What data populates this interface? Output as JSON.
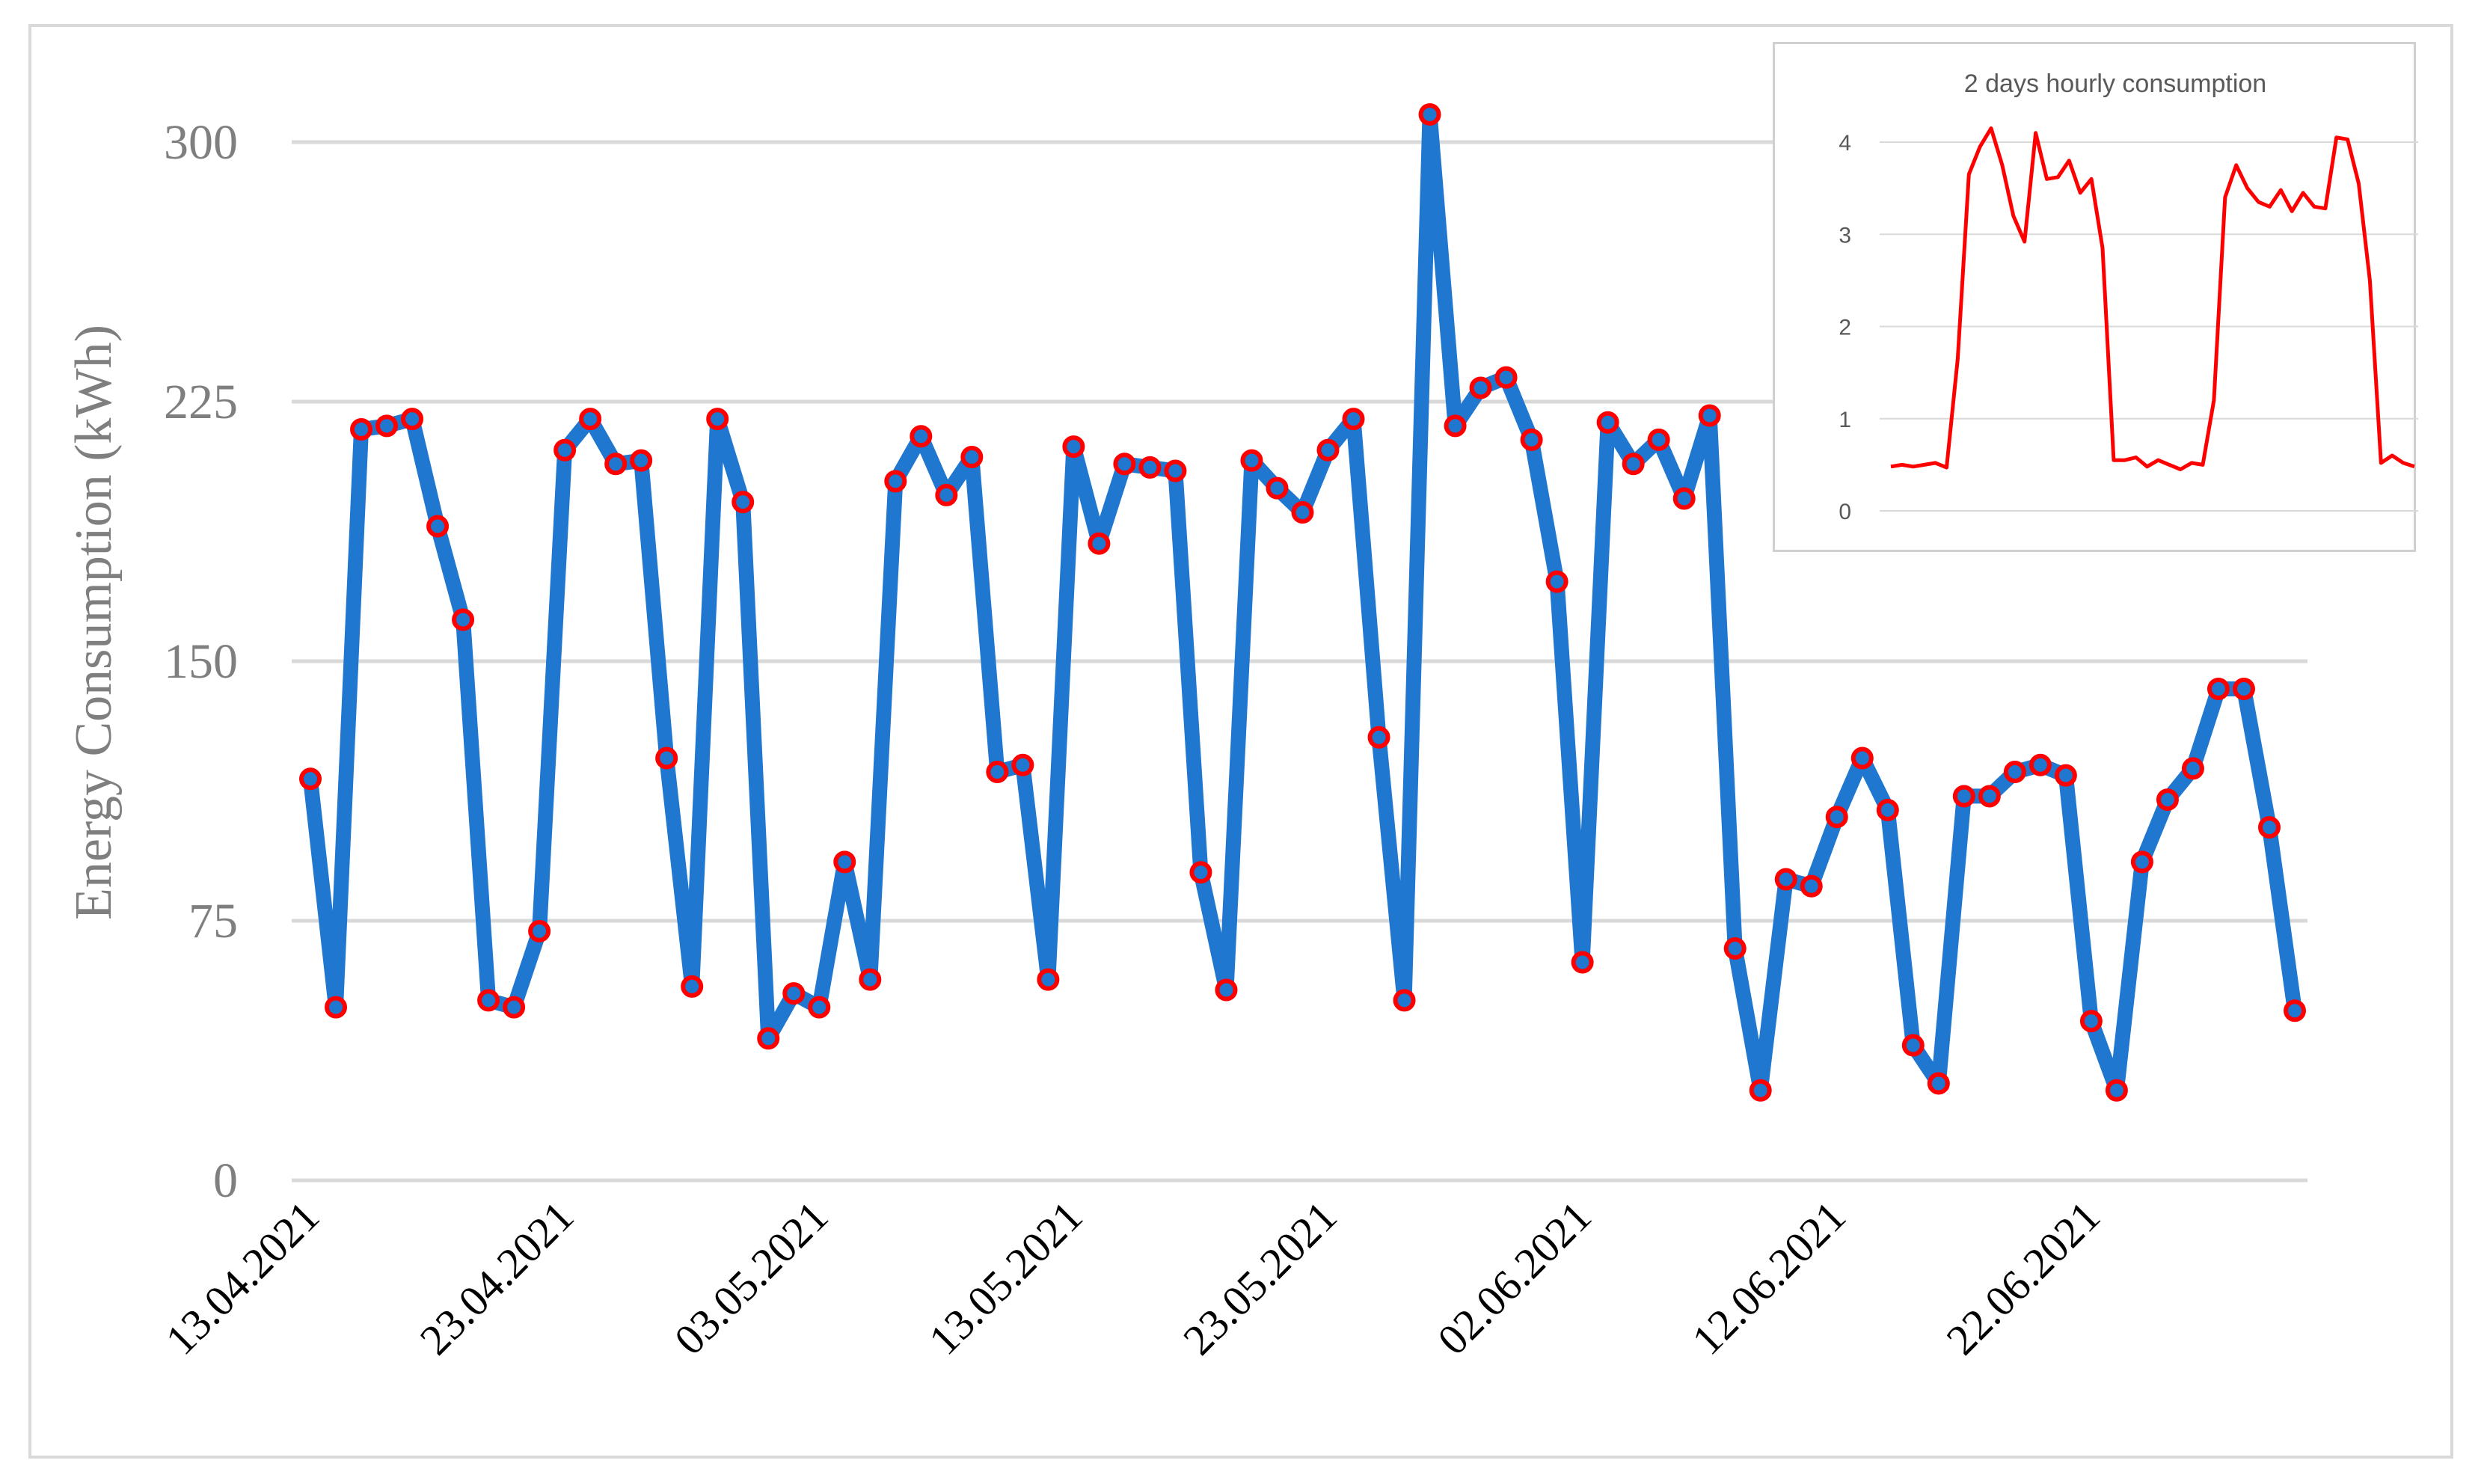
{
  "chart_data": [
    {
      "type": "line",
      "title": "",
      "xlabel": "",
      "ylabel": "Energy Consumption (kWh)",
      "ylim": [
        0,
        300
      ],
      "y_ticks": [
        0,
        75,
        150,
        225,
        300
      ],
      "x_tick_labels": [
        "13.04.2021",
        "23.04.2021",
        "03.05.2021",
        "13.05.2021",
        "23.05.2021",
        "02.06.2021",
        "12.06.2021",
        "22.06.2021"
      ],
      "x_tick_every_n_points": 10,
      "grid": true,
      "legend": "none",
      "colors": {
        "line": "#1f77d0",
        "marker_edge": "#ff0000",
        "grid": "#d9d9d9",
        "axis_text": "#7f7f7f"
      },
      "series": [
        {
          "values": [
            116,
            50,
            217,
            218,
            220,
            189,
            162,
            52,
            50,
            72,
            211,
            220,
            207,
            208,
            122,
            56,
            220,
            196,
            41,
            54,
            50,
            92,
            58,
            202,
            215,
            198,
            209,
            118,
            120,
            58,
            212,
            184,
            207,
            206,
            205,
            89,
            55,
            208,
            200,
            193,
            211,
            220,
            128,
            52,
            308,
            218,
            229,
            232,
            214,
            173,
            63,
            219,
            207,
            214,
            197,
            221,
            67,
            26,
            87,
            85,
            105,
            122,
            107,
            39,
            28,
            111,
            111,
            118,
            120,
            117,
            46,
            26,
            92,
            110,
            119,
            142,
            142,
            102,
            49
          ]
        }
      ]
    },
    {
      "type": "line",
      "title": "2 days hourly consumption",
      "xlabel": "",
      "ylabel": "",
      "ylim": [
        0,
        4
      ],
      "y_ticks": [
        0,
        1,
        2,
        3,
        4
      ],
      "grid": true,
      "legend": "none",
      "colors": {
        "line": "#ff0000",
        "grid": "#d9d9d9"
      },
      "series": [
        {
          "values": [
            0.48,
            0.5,
            0.48,
            0.5,
            0.52,
            0.47,
            1.65,
            3.65,
            3.95,
            4.15,
            3.75,
            3.2,
            2.92,
            4.1,
            3.6,
            3.62,
            3.8,
            3.45,
            3.6,
            2.85,
            0.55,
            0.55,
            0.58,
            0.48,
            0.55,
            0.5,
            0.45,
            0.52,
            0.5,
            1.2,
            3.4,
            3.75,
            3.5,
            3.35,
            3.3,
            3.48,
            3.25,
            3.45,
            3.3,
            3.28,
            4.05,
            4.03,
            3.55,
            2.5,
            0.52,
            0.6,
            0.52,
            0.48
          ]
        }
      ]
    }
  ]
}
